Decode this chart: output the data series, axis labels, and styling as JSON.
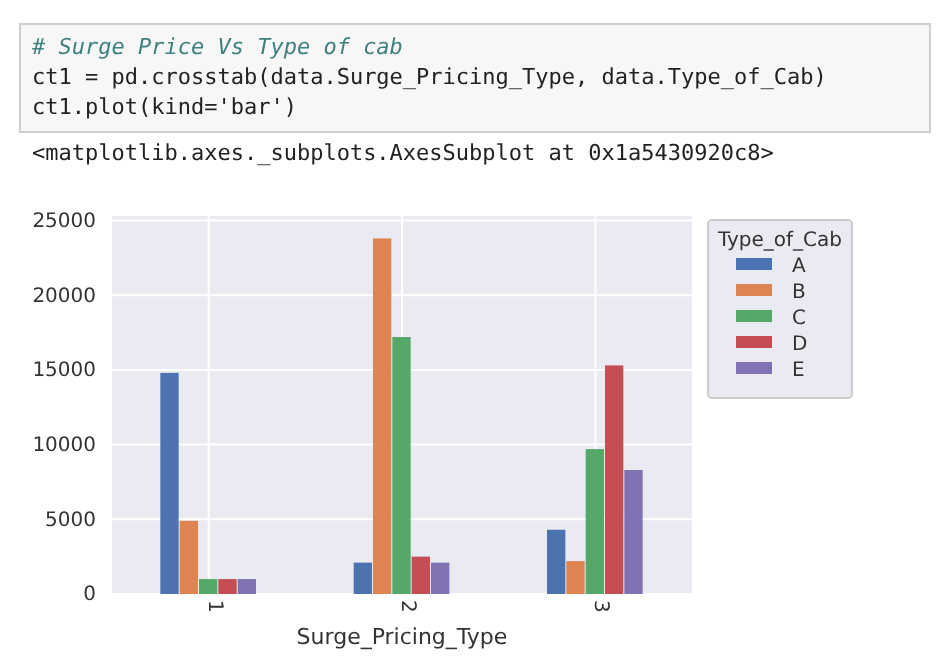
{
  "chart_data": {
    "type": "bar",
    "xlabel": "Surge_Pricing_Type",
    "legend_title": "Type_of_Cab",
    "categories": [
      "1",
      "2",
      "3"
    ],
    "series": [
      {
        "name": "A",
        "color": "#4c72b0",
        "values": [
          14800,
          2100,
          4300
        ]
      },
      {
        "name": "B",
        "color": "#dd8452",
        "values": [
          4900,
          23800,
          2200
        ]
      },
      {
        "name": "C",
        "color": "#55a868",
        "values": [
          1000,
          17200,
          9700
        ]
      },
      {
        "name": "D",
        "color": "#c44e52",
        "values": [
          1000,
          2500,
          15300
        ]
      },
      {
        "name": "E",
        "color": "#8172b3",
        "values": [
          1000,
          2100,
          8300
        ]
      }
    ],
    "ylim": [
      0,
      25300
    ],
    "yticks": [
      0,
      5000,
      10000,
      15000,
      20000,
      25000
    ],
    "grid": true,
    "legend": "right",
    "annotations": [
      "# Surge Price Vs Type of cab",
      "ct1 = pd.crosstab(data.Surge_Pricing_Type, data.Type_of_Cab)",
      "ct1.plot(kind='bar')",
      "<matplotlib.axes._subplots.AxesSubplot at 0x1a5430920c8>"
    ]
  }
}
